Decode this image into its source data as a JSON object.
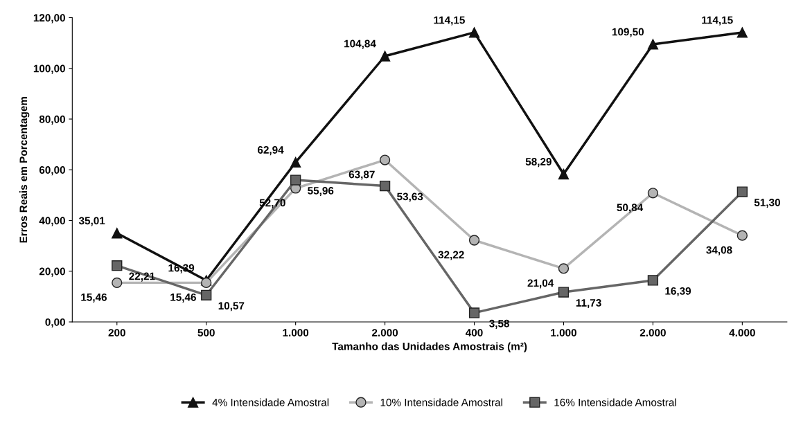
{
  "chart_data": {
    "type": "line",
    "xlabel": "Tamanho das Unidades Amostrais (m²)",
    "ylabel": "Erros Reais em Porcentagem",
    "categories": [
      "200",
      "500",
      "1.000",
      "2.000",
      "400",
      "1.000",
      "2.000",
      "4.000"
    ],
    "ylim": [
      0,
      120
    ],
    "yticks": [
      {
        "value": 0,
        "label": "0,00"
      },
      {
        "value": 20,
        "label": "20,00"
      },
      {
        "value": 40,
        "label": "40,00"
      },
      {
        "value": 60,
        "label": "60,00"
      },
      {
        "value": 80,
        "label": "80,00"
      },
      {
        "value": 100,
        "label": "100,00"
      },
      {
        "value": 120,
        "label": "120,00"
      }
    ],
    "grid": false,
    "legend": "bottom",
    "line_style": "solid",
    "series": [
      {
        "name": "4% Intensidade Amostral",
        "color": "#111111",
        "marker": "triangle",
        "values": [
          35.01,
          16.39,
          62.94,
          104.84,
          114.15,
          58.29,
          109.5,
          114.15
        ],
        "value_labels": [
          "35,01",
          "16,39",
          "62,94",
          "104,84",
          "114,15",
          "58,29",
          "109,50",
          "114,15"
        ]
      },
      {
        "name": "10% Intensidade Amostral",
        "color": "#b4b4b4",
        "marker": "circle",
        "values": [
          15.46,
          15.46,
          52.7,
          63.87,
          32.22,
          21.04,
          50.84,
          34.08
        ],
        "value_labels": [
          "15,46",
          "15,46",
          "52,70",
          "63,87",
          "32,22",
          "21,04",
          "50,84",
          "34,08"
        ]
      },
      {
        "name": "16% Intensidade Amostral",
        "color": "#666666",
        "marker": "square",
        "values": [
          22.21,
          10.57,
          55.96,
          53.63,
          3.58,
          11.73,
          16.39,
          51.3
        ],
        "value_labels": [
          "22,21",
          "10,57",
          "55,96",
          "53,63",
          "3,58",
          "11,73",
          "16,39",
          "51,30"
        ]
      }
    ]
  }
}
